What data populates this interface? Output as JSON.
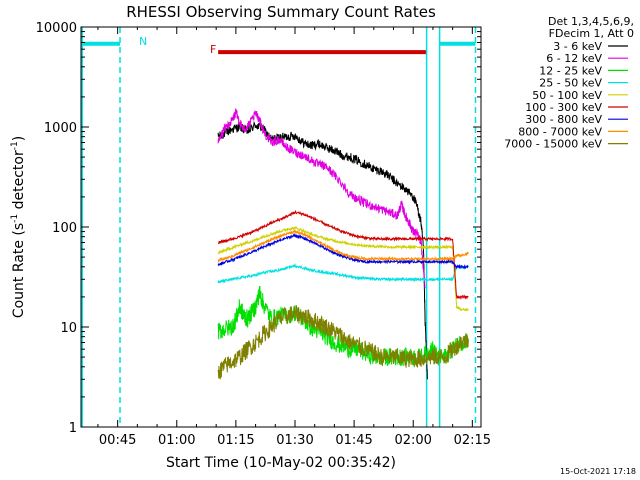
{
  "chart_data": {
    "type": "line",
    "title": "RHESSI Observing Summary Count Rates",
    "xlabel": "Start Time (10-May-02 00:35:42)",
    "ylabel_main": "Count Rate (s",
    "ylabel_sup1": "-1",
    "ylabel_mid": " detector",
    "ylabel_sup2": "-1",
    "ylabel_end": ")",
    "yscale": "log",
    "ylim": [
      1,
      10000
    ],
    "xlim_minutes": [
      35.7,
      137.2
    ],
    "x_ticks": [
      {
        "m": 45,
        "label": "00:45"
      },
      {
        "m": 60,
        "label": "01:00"
      },
      {
        "m": 75,
        "label": "01:15"
      },
      {
        "m": 90,
        "label": "01:30"
      },
      {
        "m": 105,
        "label": "01:45"
      },
      {
        "m": 120,
        "label": "02:00"
      },
      {
        "m": 135,
        "label": "02:15"
      }
    ],
    "y_ticks": [
      {
        "v": 1,
        "label": "1"
      },
      {
        "v": 10,
        "label": "10"
      },
      {
        "v": 100,
        "label": "100"
      },
      {
        "v": 1000,
        "label": "1000"
      },
      {
        "v": 10000,
        "label": "10000"
      }
    ],
    "legend": {
      "header": [
        "Det 1,3,4,5,6,9,",
        "FDecim 1, Att 0"
      ],
      "entries": [
        {
          "label": "3 - 6 keV",
          "color": "#000000"
        },
        {
          "label": "6 - 12 keV",
          "color": "#e000e0"
        },
        {
          "label": "12 - 25 keV",
          "color": "#00e000"
        },
        {
          "label": "25 - 50 keV",
          "color": "#00e0e0"
        },
        {
          "label": "50 - 100 keV",
          "color": "#d0d000"
        },
        {
          "label": "100 - 300 keV",
          "color": "#d00000"
        },
        {
          "label": "300 - 800 keV",
          "color": "#0000e0"
        },
        {
          "label": "800 - 7000 keV",
          "color": "#ff8c00"
        },
        {
          "label": "7000 - 15000 keV",
          "color": "#808000"
        }
      ]
    },
    "annotations": [
      {
        "label": "N",
        "color": "#00e0e0"
      },
      {
        "label": "F",
        "color": "#d00000"
      }
    ],
    "bars": [
      {
        "name": "N",
        "color": "#00e0e0",
        "x0": 36.0,
        "x1": 45.6,
        "y": 6800
      },
      {
        "name": "N",
        "color": "#00e0e0",
        "x0": 126.7,
        "x1": 135.8,
        "y": 6800
      },
      {
        "name": "F",
        "color": "#d00000",
        "x0": 70.5,
        "x1": 123.4,
        "y": 5600
      }
    ],
    "vlines": [
      {
        "x": 36.0,
        "color": "#00e0e0",
        "style": "solid"
      },
      {
        "x": 45.6,
        "color": "#00e0e0",
        "style": "dashed"
      },
      {
        "x": 123.4,
        "color": "#00e0e0",
        "style": "solid"
      },
      {
        "x": 126.7,
        "color": "#00e0e0",
        "style": "solid"
      },
      {
        "x": 135.8,
        "color": "#00e0e0",
        "style": "dashed"
      }
    ],
    "series": [
      {
        "label": "3 - 6 keV",
        "color": "#000000",
        "x": [
          70.5,
          72,
          74,
          76,
          78,
          80,
          82,
          84,
          86,
          88,
          90,
          92,
          94,
          96,
          98,
          100,
          102,
          104,
          106,
          108,
          110,
          112,
          114,
          116,
          118,
          120,
          121,
          122,
          122.6,
          123,
          123.6
        ],
        "y": [
          800,
          850,
          950,
          1000,
          900,
          1050,
          950,
          750,
          780,
          800,
          820,
          700,
          650,
          680,
          620,
          580,
          520,
          500,
          460,
          420,
          380,
          360,
          320,
          270,
          240,
          200,
          160,
          110,
          60,
          12,
          3
        ]
      },
      {
        "label": "6 - 12 keV",
        "color": "#e000e0",
        "x": [
          70.5,
          72,
          74,
          75,
          76,
          77,
          78,
          80,
          81,
          82,
          84,
          86,
          88,
          90,
          92,
          94,
          96,
          98,
          100,
          102,
          104,
          106,
          108,
          110,
          112,
          114,
          116,
          117,
          118,
          119,
          120,
          121,
          122,
          123
        ],
        "y": [
          700,
          950,
          1150,
          1400,
          1100,
          950,
          1000,
          1350,
          1200,
          900,
          700,
          750,
          620,
          560,
          520,
          470,
          420,
          400,
          330,
          270,
          210,
          190,
          170,
          160,
          150,
          140,
          130,
          170,
          130,
          110,
          90,
          85,
          70,
          25
        ]
      },
      {
        "label": "12 - 25 keV",
        "color": "#00e000",
        "x": [
          70.5,
          72,
          74,
          75,
          76,
          77,
          78,
          80,
          81,
          82,
          84,
          86,
          88,
          90,
          92,
          94,
          96,
          98,
          100,
          102,
          104,
          106,
          108,
          110,
          112,
          114,
          116,
          118,
          120,
          122,
          124,
          125,
          126,
          128,
          130,
          132,
          134
        ],
        "y": [
          9,
          9.5,
          10,
          12,
          16,
          13,
          12,
          16,
          22,
          17,
          12,
          13,
          13,
          14,
          12,
          10,
          9,
          8,
          7,
          6.5,
          6,
          6,
          5.5,
          5,
          5,
          5,
          5,
          5,
          5,
          5,
          5.5,
          6,
          5,
          5,
          6,
          7,
          7.5
        ]
      },
      {
        "label": "25 - 50 keV",
        "color": "#00e0e0",
        "x": [
          70.5,
          72,
          74,
          76,
          78,
          80,
          82,
          84,
          86,
          88,
          90,
          92,
          94,
          96,
          98,
          100,
          102,
          104,
          106,
          108,
          110,
          112,
          114,
          116,
          118,
          120,
          122,
          124,
          126,
          128,
          130,
          131,
          132,
          134
        ],
        "y": [
          28,
          29,
          30,
          31,
          32,
          33,
          35,
          36,
          37,
          39,
          41,
          39,
          37,
          36,
          35,
          34,
          33,
          32,
          31,
          31,
          30,
          30,
          30,
          30,
          30,
          30,
          30,
          30,
          30,
          30,
          30,
          40,
          39,
          40
        ]
      },
      {
        "label": "50 - 100 keV",
        "color": "#d0d000",
        "x": [
          70.5,
          72,
          74,
          76,
          78,
          80,
          82,
          84,
          86,
          88,
          90,
          92,
          94,
          96,
          98,
          100,
          102,
          104,
          106,
          108,
          110,
          112,
          114,
          116,
          118,
          120,
          122,
          124,
          126,
          128,
          130,
          131,
          132,
          134
        ],
        "y": [
          55,
          58,
          62,
          66,
          70,
          74,
          80,
          85,
          90,
          95,
          98,
          92,
          85,
          80,
          76,
          73,
          70,
          68,
          66,
          65,
          64,
          64,
          63,
          63,
          63,
          63,
          63,
          63,
          63,
          63,
          63,
          16,
          15,
          15
        ]
      },
      {
        "label": "100 - 300 keV",
        "color": "#d00000",
        "x": [
          70.5,
          72,
          74,
          76,
          78,
          80,
          82,
          84,
          86,
          88,
          90,
          92,
          94,
          96,
          98,
          100,
          102,
          104,
          106,
          108,
          110,
          112,
          114,
          116,
          118,
          120,
          122,
          124,
          126,
          128,
          130,
          131,
          132,
          134
        ],
        "y": [
          70,
          72,
          76,
          80,
          86,
          92,
          100,
          110,
          118,
          128,
          140,
          135,
          125,
          115,
          105,
          97,
          90,
          85,
          80,
          78,
          76,
          76,
          76,
          76,
          76,
          76,
          76,
          76,
          76,
          76,
          76,
          20,
          20,
          20
        ]
      },
      {
        "label": "300 - 800 keV",
        "color": "#0000e0",
        "x": [
          70.5,
          72,
          74,
          76,
          78,
          80,
          82,
          84,
          86,
          88,
          90,
          92,
          94,
          96,
          98,
          100,
          102,
          104,
          106,
          108,
          110,
          112,
          114,
          116,
          118,
          120,
          122,
          124,
          126,
          128,
          130,
          131,
          132,
          134
        ],
        "y": [
          42,
          44,
          47,
          50,
          54,
          58,
          63,
          68,
          73,
          78,
          82,
          78,
          72,
          66,
          60,
          55,
          51,
          48,
          46,
          45,
          45,
          45,
          45,
          45,
          45,
          45,
          45,
          45,
          45,
          45,
          45,
          40,
          40,
          40
        ]
      },
      {
        "label": "800 - 7000 keV",
        "color": "#ff8c00",
        "x": [
          70.5,
          72,
          74,
          76,
          78,
          80,
          82,
          84,
          86,
          88,
          90,
          92,
          94,
          96,
          98,
          100,
          102,
          104,
          106,
          108,
          110,
          112,
          114,
          116,
          118,
          120,
          122,
          124,
          126,
          128,
          130,
          131,
          132,
          134
        ],
        "y": [
          46,
          48,
          51,
          55,
          59,
          64,
          69,
          75,
          80,
          86,
          90,
          85,
          78,
          71,
          64,
          58,
          54,
          51,
          49,
          48,
          48,
          48,
          48,
          48,
          48,
          48,
          48,
          48,
          48,
          48,
          48,
          52,
          52,
          54
        ]
      },
      {
        "label": "7000 - 15000 keV",
        "color": "#808000",
        "x": [
          70.5,
          72,
          74,
          76,
          78,
          80,
          82,
          84,
          86,
          88,
          90,
          92,
          94,
          96,
          98,
          100,
          102,
          104,
          106,
          108,
          110,
          112,
          114,
          116,
          118,
          120,
          122,
          124,
          126,
          128,
          130,
          132,
          134
        ],
        "y": [
          3.5,
          4,
          4.5,
          5,
          6,
          7,
          8.5,
          10,
          12,
          13,
          13.5,
          13,
          12,
          11,
          10,
          9,
          8,
          7,
          6.5,
          6,
          5.5,
          5,
          5,
          5,
          4.8,
          4.8,
          4.8,
          5,
          5,
          5,
          6,
          7,
          7.5
        ]
      }
    ]
  },
  "footer_date": "15-Oct-2021 17:18"
}
